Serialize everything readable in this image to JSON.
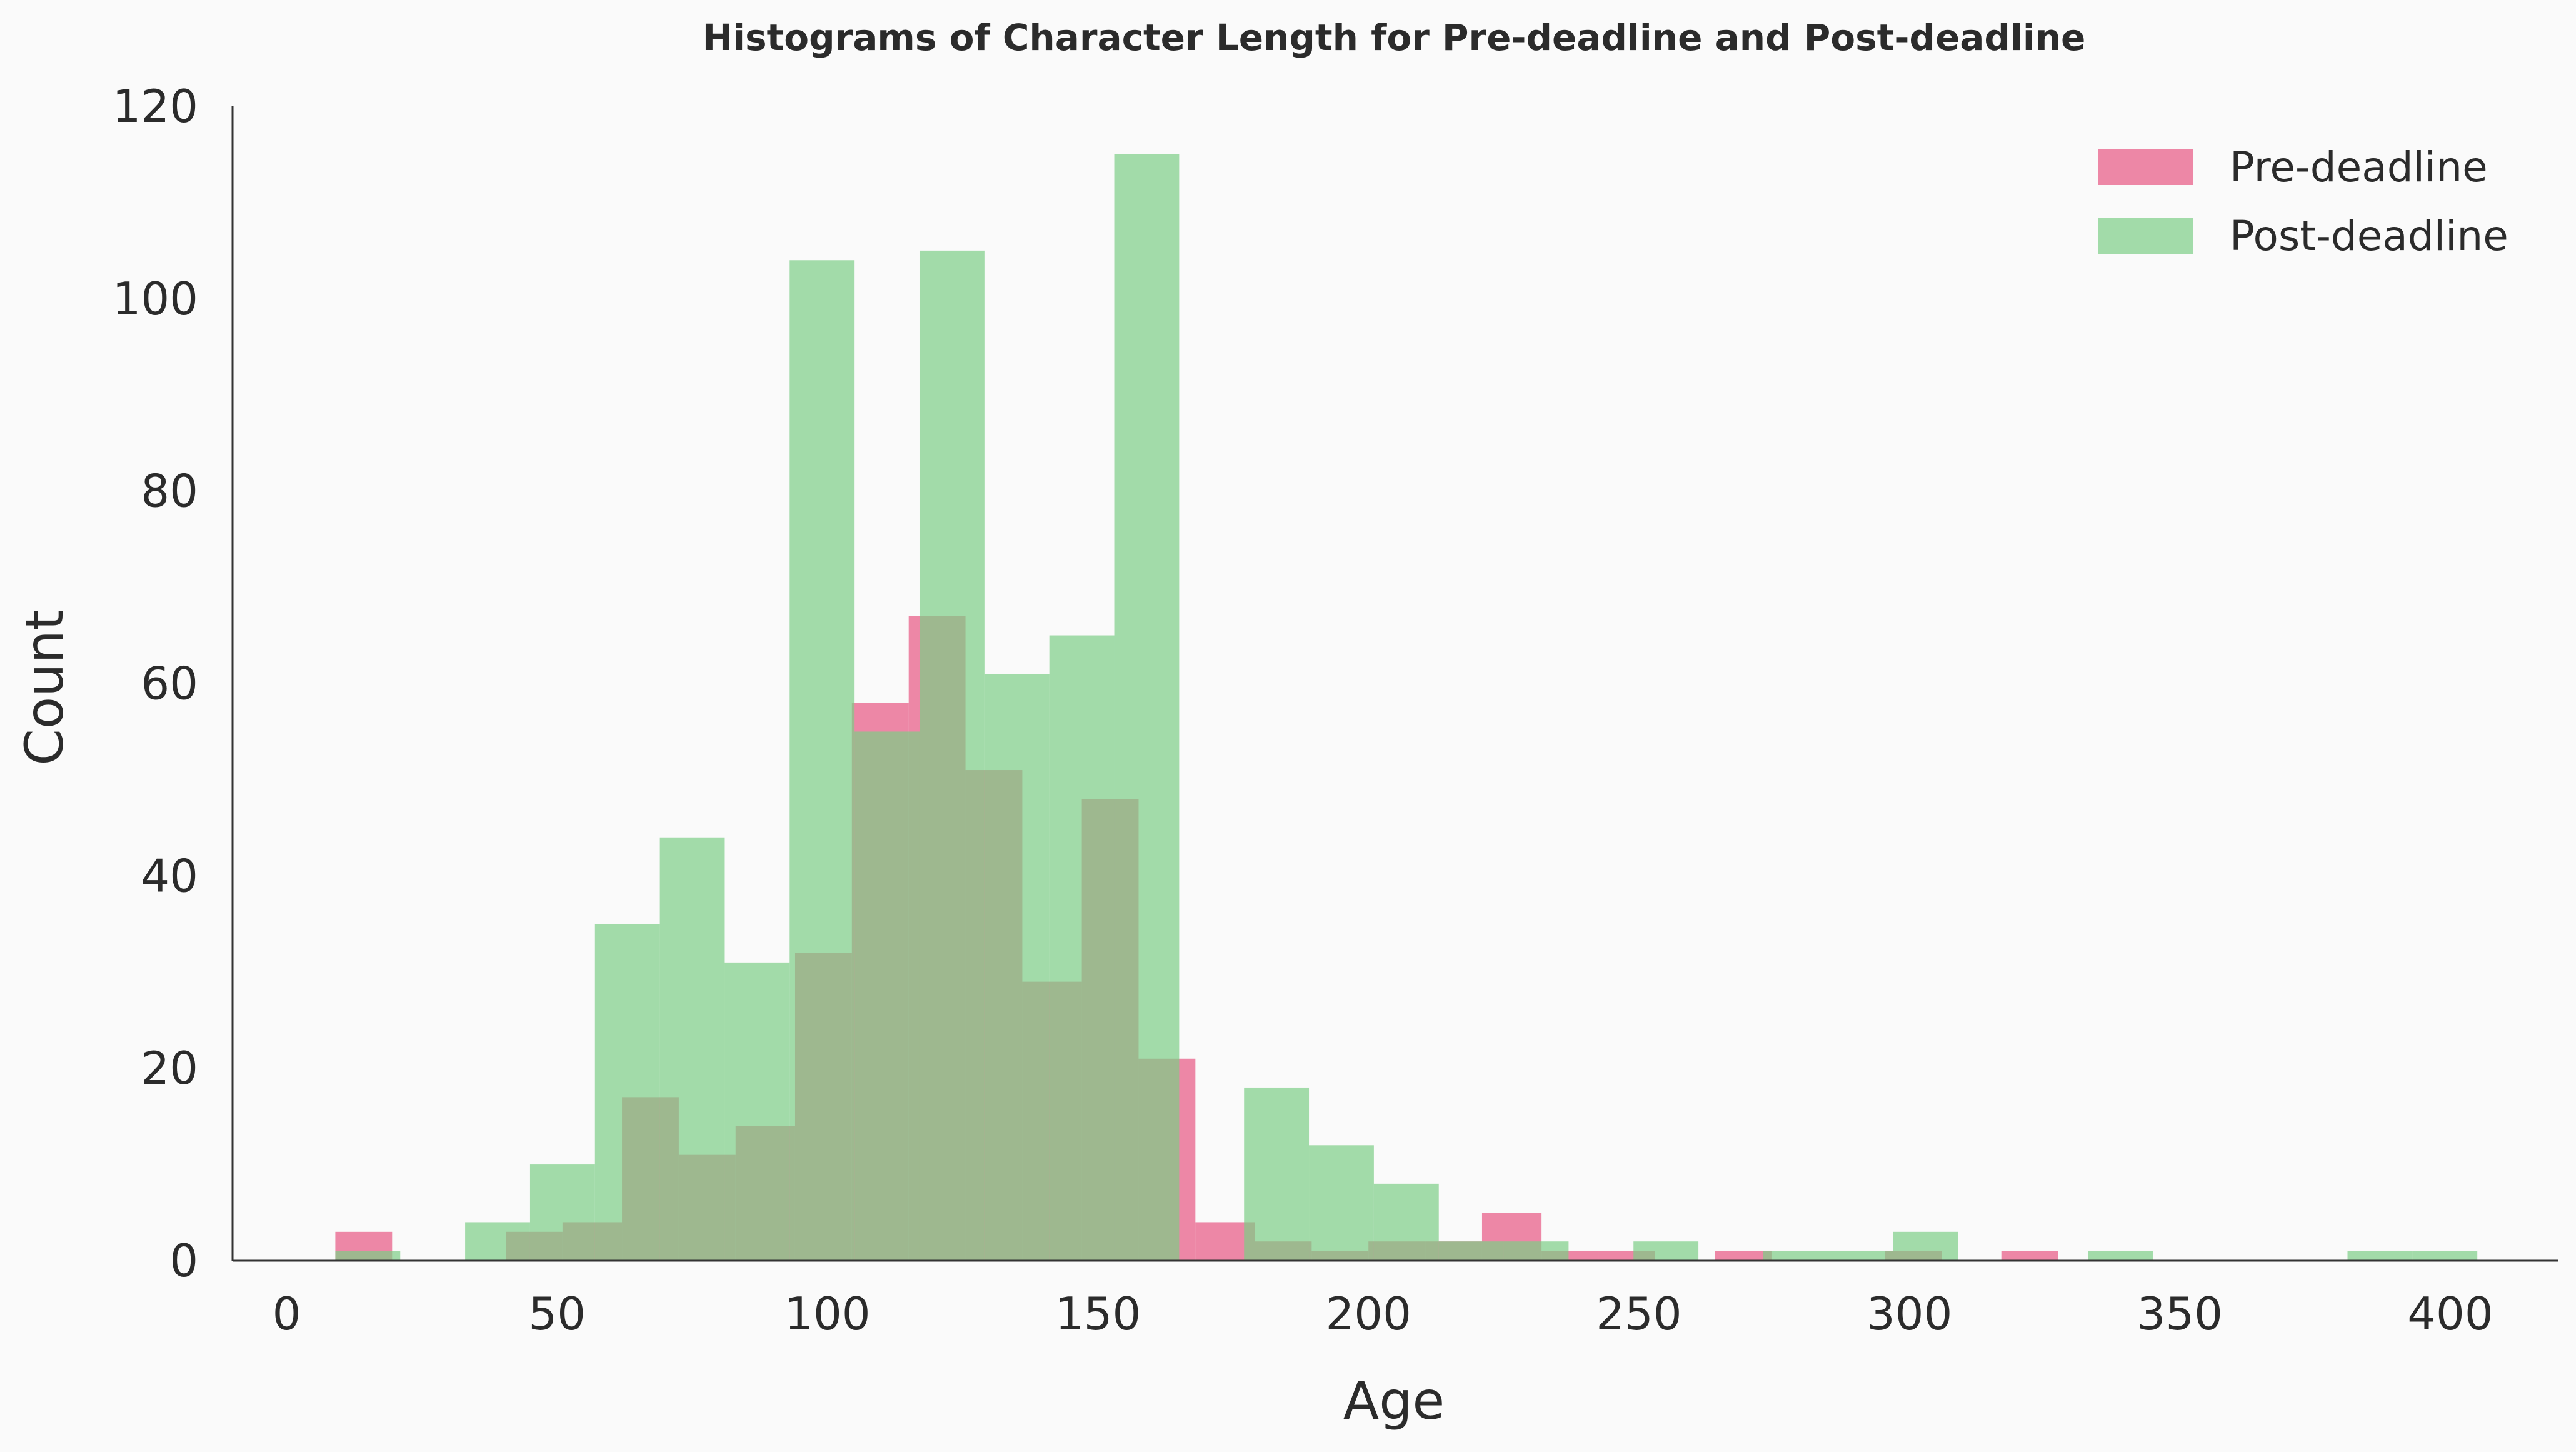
{
  "chart_data": {
    "type": "bar",
    "title": "Histograms of Character Length for Pre-deadline and Post-deadline",
    "xlabel": "Age",
    "ylabel": "Count",
    "xlim": [
      -10,
      420
    ],
    "ylim": [
      0,
      120
    ],
    "xticks": [
      0,
      50,
      100,
      150,
      200,
      250,
      300,
      350,
      400
    ],
    "yticks": [
      0,
      20,
      40,
      60,
      80,
      100,
      120
    ],
    "grid": false,
    "legend": "top-right",
    "series": [
      {
        "name": "Pre-deadline",
        "color": "#e8608a",
        "opacity": 0.75,
        "bins": [
          {
            "x0": 9,
            "x1": 19.5,
            "count": 3
          },
          {
            "x0": 19.5,
            "x1": 30,
            "count": 0
          },
          {
            "x0": 30,
            "x1": 40.5,
            "count": 0
          },
          {
            "x0": 40.5,
            "x1": 51,
            "count": 3
          },
          {
            "x0": 51,
            "x1": 62,
            "count": 4
          },
          {
            "x0": 62,
            "x1": 72.5,
            "count": 17
          },
          {
            "x0": 72.5,
            "x1": 83,
            "count": 11
          },
          {
            "x0": 83,
            "x1": 94,
            "count": 14
          },
          {
            "x0": 94,
            "x1": 104.5,
            "count": 32
          },
          {
            "x0": 104.5,
            "x1": 115,
            "count": 58
          },
          {
            "x0": 115,
            "x1": 125.5,
            "count": 67
          },
          {
            "x0": 125.5,
            "x1": 136,
            "count": 51
          },
          {
            "x0": 136,
            "x1": 147,
            "count": 29
          },
          {
            "x0": 147,
            "x1": 157.5,
            "count": 48
          },
          {
            "x0": 157.5,
            "x1": 168,
            "count": 21
          },
          {
            "x0": 168,
            "x1": 179,
            "count": 4
          },
          {
            "x0": 179,
            "x1": 189.5,
            "count": 2
          },
          {
            "x0": 189.5,
            "x1": 200,
            "count": 1
          },
          {
            "x0": 200,
            "x1": 210.5,
            "count": 2
          },
          {
            "x0": 210.5,
            "x1": 221,
            "count": 2
          },
          {
            "x0": 221,
            "x1": 232,
            "count": 5
          },
          {
            "x0": 232,
            "x1": 242.5,
            "count": 1
          },
          {
            "x0": 242.5,
            "x1": 253,
            "count": 1
          },
          {
            "x0": 253,
            "x1": 264,
            "count": 0
          },
          {
            "x0": 264,
            "x1": 274.5,
            "count": 1
          },
          {
            "x0": 274.5,
            "x1": 285,
            "count": 0
          },
          {
            "x0": 285,
            "x1": 295.5,
            "count": 0
          },
          {
            "x0": 295.5,
            "x1": 306,
            "count": 1
          },
          {
            "x0": 306,
            "x1": 317,
            "count": 0
          },
          {
            "x0": 317,
            "x1": 327.5,
            "count": 1
          }
        ]
      },
      {
        "name": "Post-deadline",
        "color": "#7ccd86",
        "opacity": 0.7,
        "bins": [
          {
            "x0": 9,
            "x1": 21,
            "count": 1
          },
          {
            "x0": 21,
            "x1": 33,
            "count": 0
          },
          {
            "x0": 33,
            "x1": 45,
            "count": 4
          },
          {
            "x0": 45,
            "x1": 57,
            "count": 10
          },
          {
            "x0": 57,
            "x1": 69,
            "count": 35
          },
          {
            "x0": 69,
            "x1": 81,
            "count": 44
          },
          {
            "x0": 81,
            "x1": 93,
            "count": 31
          },
          {
            "x0": 93,
            "x1": 105,
            "count": 104
          },
          {
            "x0": 105,
            "x1": 117,
            "count": 55
          },
          {
            "x0": 117,
            "x1": 129,
            "count": 105
          },
          {
            "x0": 129,
            "x1": 141,
            "count": 61
          },
          {
            "x0": 141,
            "x1": 153,
            "count": 65
          },
          {
            "x0": 153,
            "x1": 165,
            "count": 115
          },
          {
            "x0": 165,
            "x1": 177,
            "count": 0
          },
          {
            "x0": 177,
            "x1": 189,
            "count": 18
          },
          {
            "x0": 189,
            "x1": 201,
            "count": 12
          },
          {
            "x0": 201,
            "x1": 213,
            "count": 8
          },
          {
            "x0": 213,
            "x1": 225,
            "count": 2
          },
          {
            "x0": 225,
            "x1": 237,
            "count": 2
          },
          {
            "x0": 237,
            "x1": 249,
            "count": 0
          },
          {
            "x0": 249,
            "x1": 261,
            "count": 2
          },
          {
            "x0": 261,
            "x1": 273,
            "count": 0
          },
          {
            "x0": 273,
            "x1": 285,
            "count": 1
          },
          {
            "x0": 285,
            "x1": 297,
            "count": 1
          },
          {
            "x0": 297,
            "x1": 309,
            "count": 3
          },
          {
            "x0": 309,
            "x1": 321,
            "count": 0
          },
          {
            "x0": 321,
            "x1": 333,
            "count": 0
          },
          {
            "x0": 333,
            "x1": 345,
            "count": 1
          },
          {
            "x0": 345,
            "x1": 357,
            "count": 0
          },
          {
            "x0": 357,
            "x1": 369,
            "count": 0
          },
          {
            "x0": 369,
            "x1": 381,
            "count": 0
          },
          {
            "x0": 381,
            "x1": 393,
            "count": 1
          },
          {
            "x0": 393,
            "x1": 405,
            "count": 1
          }
        ]
      }
    ]
  }
}
